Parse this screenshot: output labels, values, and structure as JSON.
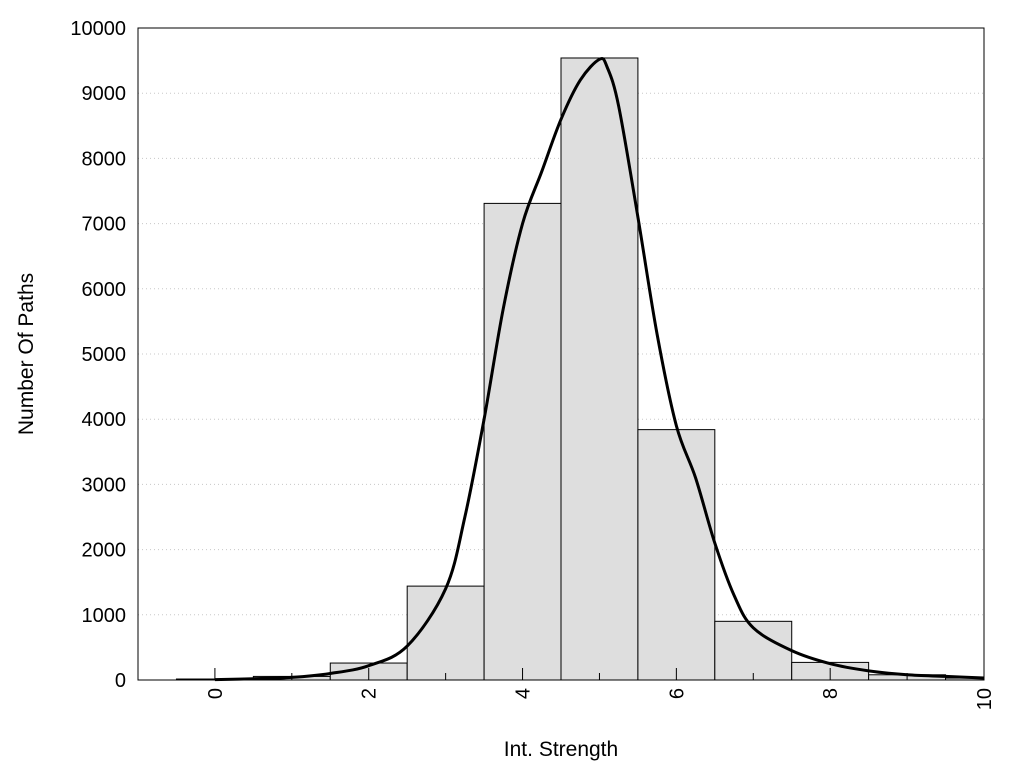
{
  "chart_data": {
    "type": "bar",
    "title": "",
    "xlabel": "Int. Strength",
    "ylabel": "Number Of Paths",
    "xlim": [
      -1,
      10
    ],
    "ylim": [
      0,
      10000
    ],
    "x_ticks": [
      0,
      2,
      4,
      6,
      8,
      10
    ],
    "y_ticks": [
      0,
      1000,
      2000,
      3000,
      4000,
      5000,
      6000,
      7000,
      8000,
      9000,
      10000
    ],
    "grid": "horizontal dotted",
    "legend": "none",
    "bar_width": 1,
    "bar_fill": "#dedede",
    "bar_stroke": "#000000",
    "bins": [
      {
        "x": 0,
        "value": 15
      },
      {
        "x": 1,
        "value": 55
      },
      {
        "x": 2,
        "value": 260
      },
      {
        "x": 3,
        "value": 1440
      },
      {
        "x": 4,
        "value": 7310
      },
      {
        "x": 5,
        "value": 9540
      },
      {
        "x": 6,
        "value": 3840
      },
      {
        "x": 7,
        "value": 900
      },
      {
        "x": 8,
        "value": 270
      },
      {
        "x": 9,
        "value": 80
      },
      {
        "x": 10,
        "value": 30
      }
    ],
    "fit_curve": {
      "color": "#000000",
      "points": [
        [
          0,
          5
        ],
        [
          0.5,
          20
        ],
        [
          1,
          40
        ],
        [
          1.5,
          100
        ],
        [
          2,
          220
        ],
        [
          2.5,
          520
        ],
        [
          3,
          1400
        ],
        [
          3.25,
          2500
        ],
        [
          3.5,
          4000
        ],
        [
          3.75,
          5700
        ],
        [
          4,
          7000
        ],
        [
          4.25,
          7800
        ],
        [
          4.5,
          8600
        ],
        [
          4.75,
          9200
        ],
        [
          5,
          9520
        ],
        [
          5.1,
          9400
        ],
        [
          5.25,
          8800
        ],
        [
          5.5,
          7100
        ],
        [
          5.75,
          5300
        ],
        [
          6,
          3900
        ],
        [
          6.25,
          3100
        ],
        [
          6.5,
          2100
        ],
        [
          6.75,
          1300
        ],
        [
          7,
          800
        ],
        [
          7.5,
          450
        ],
        [
          8,
          250
        ],
        [
          8.5,
          140
        ],
        [
          9,
          80
        ],
        [
          9.5,
          55
        ],
        [
          10,
          30
        ]
      ]
    }
  }
}
